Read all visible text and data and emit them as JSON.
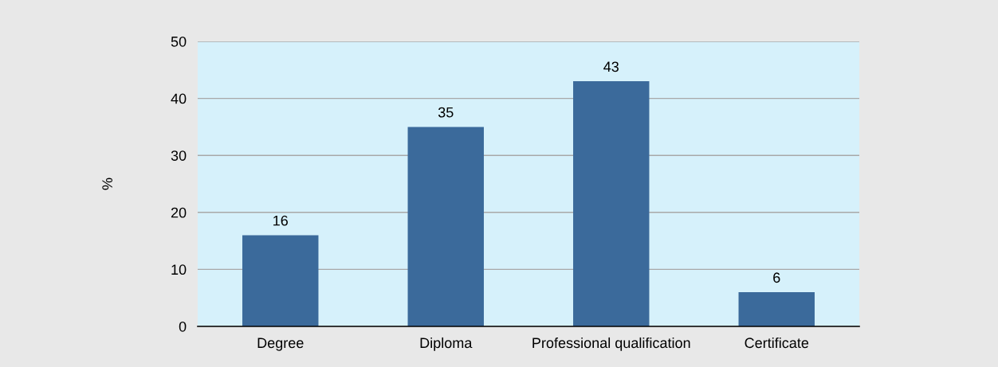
{
  "chart_data": {
    "type": "bar",
    "ylabel": "%",
    "categories": [
      "Degree",
      "Diploma",
      "Professional qualification",
      "Certificate"
    ],
    "values": [
      16,
      35,
      43,
      6
    ],
    "color": "#3b6a9b",
    "ylim": [
      0,
      50
    ],
    "yticks": [
      0,
      10,
      20,
      30,
      40,
      50
    ],
    "grid": "y",
    "data_labels": true
  }
}
